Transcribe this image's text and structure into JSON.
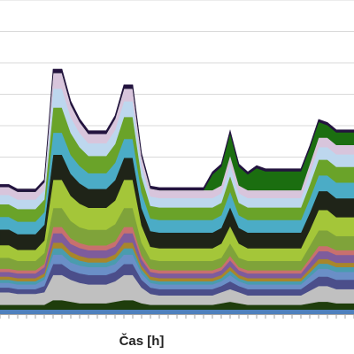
{
  "chart_data": {
    "type": "area",
    "stacked": true,
    "title": "",
    "xlabel": "Čas [h]",
    "ylabel": "",
    "grid": true,
    "legend": "none",
    "x": [
      1,
      2,
      3,
      4,
      5,
      6,
      7,
      8,
      9,
      10,
      11,
      12,
      13,
      14,
      15,
      16,
      17,
      18,
      19,
      20,
      21,
      22,
      23,
      24,
      25,
      26,
      27,
      28,
      29,
      30,
      31,
      32,
      33,
      34,
      35,
      36,
      37,
      38,
      39,
      40,
      41
    ],
    "ylim": [
      0,
      100
    ],
    "series": [
      {
        "color": "#4f81bd",
        "values": [
          1.5,
          1.5,
          1.5,
          1.5,
          1.5,
          1.5,
          1.5,
          1.5,
          1.5,
          1.5,
          1.5,
          1.5,
          1.5,
          1.5,
          1.5,
          1.5,
          1.5,
          1.5,
          1.5,
          1.5,
          1.5,
          1.5,
          1.5,
          1.5,
          1.5,
          1.5,
          1.5,
          1.5,
          1.5,
          1.5,
          1.5,
          1.5,
          1.5,
          1.5,
          1.5,
          1.5,
          1.5,
          1.5,
          1.5,
          1.5,
          1.5
        ]
      },
      {
        "color": "#1f3d0c",
        "values": [
          1.5,
          1.5,
          1.5,
          1.5,
          1.5,
          1.5,
          3,
          3,
          2.5,
          2,
          2,
          2,
          2,
          2.5,
          3,
          3,
          2,
          1.5,
          1.5,
          1.5,
          1.5,
          1.5,
          1.5,
          1.5,
          1.5,
          2,
          2.5,
          2,
          1.5,
          1.5,
          1.5,
          1.5,
          1.5,
          1.5,
          1.5,
          2,
          2.5,
          2.5,
          2,
          2,
          2
        ]
      },
      {
        "color": "#c0c0c0",
        "values": [
          4,
          4,
          3.5,
          3.5,
          3.5,
          4,
          8,
          8,
          7,
          6.5,
          6,
          6,
          6,
          6.5,
          8,
          8,
          5,
          3.5,
          3,
          3,
          3,
          3,
          3,
          3,
          3,
          3.5,
          4,
          3.5,
          3,
          3,
          3,
          3,
          3,
          3,
          3,
          4,
          5,
          5,
          4.5,
          4.5,
          4.5
        ]
      },
      {
        "color": "#4b4e8a",
        "values": [
          1.5,
          1.5,
          1.5,
          1.5,
          1.5,
          2,
          3.5,
          3.5,
          3,
          3,
          3,
          3,
          3,
          3,
          3.5,
          3.5,
          2.5,
          2,
          2,
          2,
          2,
          2,
          2,
          2,
          2,
          2,
          2.5,
          2,
          2,
          2,
          2,
          2,
          2,
          2,
          2,
          2.5,
          3,
          3,
          3,
          3,
          3
        ]
      },
      {
        "color": "#6a8fc7",
        "values": [
          1.5,
          1.5,
          1.5,
          1.5,
          1.5,
          2,
          3,
          3,
          2.5,
          2.5,
          2.5,
          2.5,
          2.5,
          2.5,
          3,
          3,
          2,
          1.5,
          1.5,
          1.5,
          1.5,
          1.5,
          1.5,
          1.5,
          1.5,
          1.5,
          2,
          1.5,
          1.5,
          1.5,
          1.5,
          1.5,
          1.5,
          1.5,
          1.5,
          2,
          2.5,
          2.5,
          2.5,
          2.5,
          2.5
        ]
      },
      {
        "color": "#4a9cae",
        "values": [
          1,
          1,
          1,
          1,
          1,
          1,
          2,
          2,
          1.8,
          1.6,
          1.5,
          1.5,
          1.5,
          1.6,
          2,
          2,
          1.3,
          1,
          1,
          1,
          1,
          1,
          1,
          1,
          1,
          1,
          1.4,
          1,
          1,
          1,
          1,
          1,
          1,
          1,
          1,
          1.3,
          1.6,
          1.6,
          1.5,
          1.5,
          1.5
        ]
      },
      {
        "color": "#a8862b",
        "values": [
          1,
          1,
          1,
          1,
          1,
          1,
          1.8,
          1.8,
          1.6,
          1.5,
          1.4,
          1.4,
          1.4,
          1.5,
          1.8,
          1.8,
          1.2,
          1,
          1,
          1,
          1,
          1,
          1,
          1,
          1,
          1,
          1.3,
          1,
          1,
          1,
          1,
          1,
          1,
          1,
          1,
          1.2,
          1.5,
          1.5,
          1.4,
          1.4,
          1.4
        ]
      },
      {
        "color": "#7e5c9c",
        "values": [
          1.5,
          1.5,
          1.5,
          1.5,
          1.5,
          2,
          3,
          3,
          2.5,
          2.5,
          2.5,
          2.5,
          2.5,
          2.5,
          3,
          3,
          2,
          1.5,
          1.5,
          1.5,
          1.5,
          1.5,
          1.5,
          1.5,
          1.5,
          1.5,
          2,
          1.5,
          1.5,
          1.5,
          1.5,
          1.5,
          1.5,
          1.5,
          1.5,
          2,
          2.5,
          2.5,
          2.5,
          2.5,
          2.5
        ]
      },
      {
        "color": "#c8706e",
        "values": [
          1,
          1,
          1,
          1,
          1,
          1,
          2,
          2,
          1.8,
          1.6,
          1.5,
          1.5,
          1.5,
          1.6,
          2,
          2,
          1.3,
          1,
          1,
          1,
          1,
          1,
          1,
          1,
          1,
          1,
          1.4,
          1,
          1,
          1,
          1,
          1,
          1,
          1,
          1,
          1.3,
          1.6,
          1.6,
          1.5,
          1.5,
          1.5
        ]
      },
      {
        "color": "#7fa33a",
        "values": [
          3.5,
          3.5,
          3,
          3,
          3,
          3.5,
          6,
          6,
          5.5,
          5,
          5,
          5,
          5,
          5.5,
          6,
          6,
          4,
          3,
          3,
          3,
          3,
          3,
          3,
          3,
          3,
          3,
          4,
          3,
          3,
          3,
          3,
          3,
          3,
          3,
          3,
          4,
          5,
          5,
          4.5,
          4.5,
          4.5
        ]
      },
      {
        "color": "#a4c639",
        "values": [
          4,
          4,
          3.5,
          3.5,
          3.5,
          4,
          9,
          9,
          8,
          7.5,
          7,
          7,
          7,
          7.5,
          9,
          9,
          5.5,
          4,
          4,
          4,
          4,
          4,
          4,
          4,
          4,
          4.5,
          5.5,
          4.5,
          4,
          4,
          4,
          4,
          4,
          4,
          4,
          5,
          6.5,
          6.5,
          6,
          6,
          6
        ]
      },
      {
        "color": "#1f2418",
        "values": [
          5,
          5,
          5,
          5,
          5,
          5,
          8,
          8,
          7,
          6.5,
          6,
          6,
          6,
          6.5,
          7,
          7,
          5.5,
          5,
          5,
          5,
          5,
          5,
          5,
          5,
          5,
          5,
          6,
          5,
          5,
          5,
          5,
          5,
          5,
          5,
          5,
          5.5,
          6,
          6,
          6,
          6,
          6
        ]
      },
      {
        "color": "#4bacc6",
        "values": [
          4,
          4,
          4,
          4,
          4,
          4,
          7,
          7,
          6,
          5.5,
          5,
          5,
          5,
          5.5,
          6,
          6,
          5,
          4,
          4,
          4,
          4,
          4,
          4,
          4,
          4,
          4,
          5,
          4,
          4,
          4,
          4,
          4,
          4,
          4,
          4,
          4.5,
          5,
          5,
          5,
          5,
          5
        ]
      },
      {
        "color": "#6aa329",
        "values": [
          4,
          4,
          4,
          4,
          4,
          4,
          8,
          8,
          7,
          6,
          5.5,
          5.5,
          5.5,
          6,
          7,
          7,
          5,
          4,
          4,
          4,
          4,
          4,
          4,
          4,
          4,
          4,
          5,
          4,
          4,
          4,
          4,
          4,
          4,
          4,
          4,
          4.5,
          5,
          5,
          5,
          5,
          5
        ]
      },
      {
        "color": "#bdd7ee",
        "values": [
          3,
          3,
          3,
          3,
          3,
          3,
          6,
          6,
          5,
          4.5,
          4,
          4,
          4,
          4.5,
          5,
          5,
          3.5,
          3,
          3,
          3,
          3,
          3,
          3,
          3,
          3,
          3,
          3.5,
          3,
          3,
          3,
          3,
          3,
          3,
          3,
          3,
          3.5,
          4,
          4,
          4,
          4,
          4
        ]
      },
      {
        "color": "#d8c5dc",
        "values": [
          2.5,
          2.5,
          2.5,
          2.5,
          2.5,
          2.5,
          5,
          5,
          4,
          3.5,
          3,
          3,
          3,
          3.5,
          4,
          4,
          3,
          2.5,
          2.5,
          2.5,
          2.5,
          2.5,
          2.5,
          2.5,
          2.5,
          2.5,
          3,
          2.5,
          2.5,
          2.5,
          2.5,
          2.5,
          2.5,
          2.5,
          2.5,
          3,
          3,
          3,
          3,
          3,
          3
        ]
      },
      {
        "color": "#1b6e10",
        "values": [
          0,
          0,
          0,
          0,
          0,
          0,
          0,
          0,
          0,
          0,
          0,
          0,
          0,
          0,
          0,
          0,
          0,
          0,
          0,
          0,
          0,
          0,
          0,
          0,
          5,
          6,
          7,
          6,
          5,
          7,
          6,
          6,
          6,
          6,
          6,
          5,
          5,
          4,
          4,
          4,
          4
        ]
      },
      {
        "color": "#23133f",
        "values": [
          0.8,
          0.8,
          0.8,
          0.8,
          0.8,
          0.8,
          1.2,
          1.2,
          1.1,
          1,
          1,
          1,
          1,
          1,
          1.2,
          1.2,
          0.9,
          0.8,
          0.8,
          0.8,
          0.8,
          0.8,
          0.8,
          0.8,
          0.8,
          0.8,
          0.9,
          0.8,
          0.8,
          0.8,
          0.8,
          0.8,
          0.8,
          0.8,
          0.8,
          0.8,
          0.8,
          0.8,
          0.8,
          0.8,
          0.8
        ]
      }
    ]
  }
}
